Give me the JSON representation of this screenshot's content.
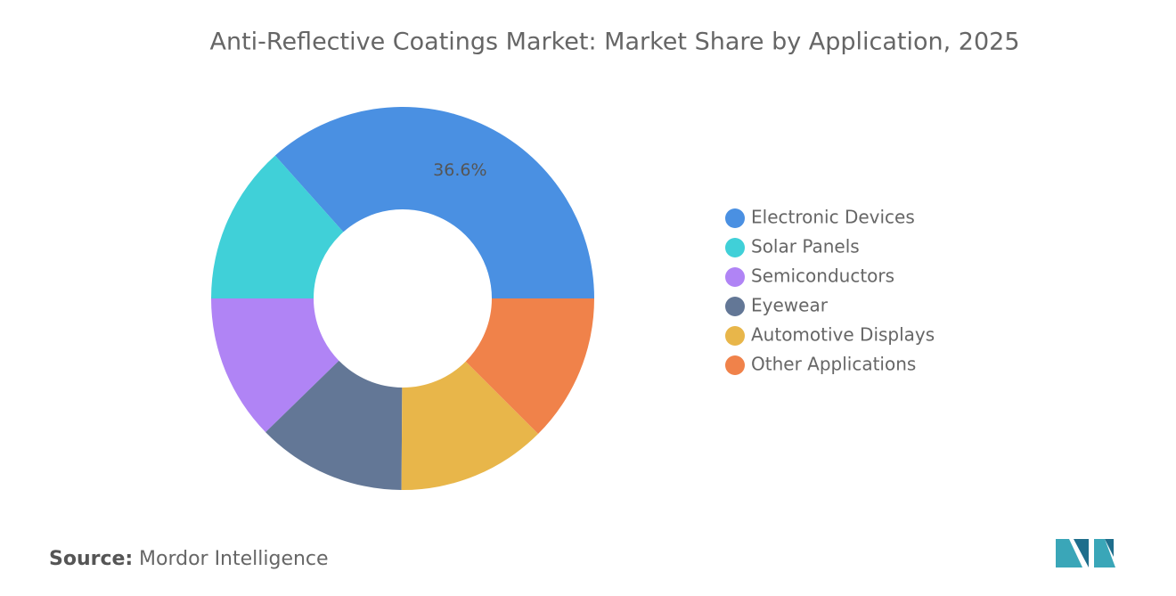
{
  "chart_data": {
    "type": "pie",
    "title": "Anti-Reflective Coatings Market: Market Share by Application, 2025",
    "categories": [
      "Electronic Devices",
      "Solar Panels",
      "Semiconductors",
      "Eyewear",
      "Automotive Displays",
      "Other Applications"
    ],
    "values": [
      36.6,
      13.4,
      12.3,
      12.6,
      12.6,
      12.5
    ],
    "value_labels": [
      "36.6%",
      null,
      null,
      null,
      null,
      null
    ],
    "colors": [
      "#4a90e2",
      "#40d0d8",
      "#b084f5",
      "#637796",
      "#e8b64a",
      "#f0824a"
    ],
    "donut": true,
    "legend": "right",
    "source_label": "Source:",
    "source": "Mordor Intelligence"
  }
}
